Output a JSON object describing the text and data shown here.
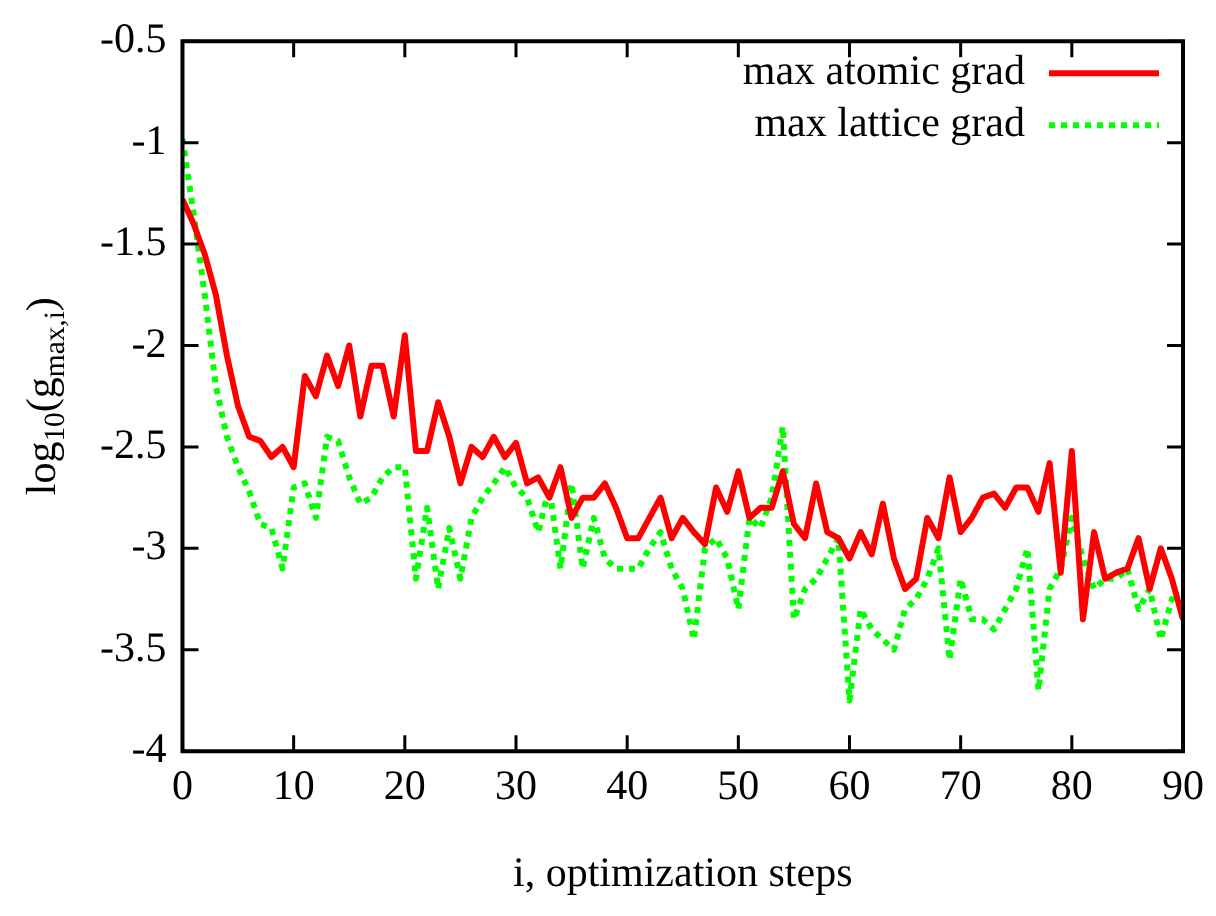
{
  "chart_data": {
    "type": "line",
    "xlabel": "i, optimization steps",
    "ylabel": "log$_{10}$(g$_{max,i}$)",
    "xlim": [
      0,
      90
    ],
    "xticks": [
      0,
      10,
      20,
      30,
      40,
      50,
      60,
      70,
      80,
      90
    ],
    "ylim": [
      -4,
      -0.5
    ],
    "yticks": [
      -4,
      -3.5,
      -3,
      -2.5,
      -2,
      -1.5,
      -1,
      -0.5
    ],
    "grid": false,
    "legend": "top right",
    "marker": "none",
    "x": [
      0,
      1,
      2,
      3,
      4,
      5,
      6,
      7,
      8,
      9,
      10,
      11,
      12,
      13,
      14,
      15,
      16,
      17,
      18,
      19,
      20,
      21,
      22,
      23,
      24,
      25,
      26,
      27,
      28,
      29,
      30,
      31,
      32,
      33,
      34,
      35,
      36,
      37,
      38,
      39,
      40,
      41,
      42,
      43,
      44,
      45,
      46,
      47,
      48,
      49,
      50,
      51,
      52,
      53,
      54,
      55,
      56,
      57,
      58,
      59,
      60,
      61,
      62,
      63,
      64,
      65,
      66,
      67,
      68,
      69,
      70,
      71,
      72,
      73,
      74,
      75,
      76,
      77,
      78,
      79,
      80,
      81,
      82,
      83,
      84,
      85,
      86,
      87,
      88,
      89,
      90
    ],
    "series": [
      {
        "name": "max atomic grad",
        "color": "#ff0000",
        "line_style": "solid",
        "values": [
          -1.28,
          -1.4,
          -1.55,
          -1.75,
          -2.05,
          -2.3,
          -2.45,
          -2.47,
          -2.55,
          -2.5,
          -2.6,
          -2.15,
          -2.25,
          -2.05,
          -2.2,
          -2.0,
          -2.35,
          -2.1,
          -2.1,
          -2.35,
          -1.95,
          -2.52,
          -2.52,
          -2.28,
          -2.45,
          -2.68,
          -2.5,
          -2.55,
          -2.45,
          -2.55,
          -2.48,
          -2.68,
          -2.65,
          -2.75,
          -2.6,
          -2.85,
          -2.75,
          -2.75,
          -2.68,
          -2.8,
          -2.95,
          -2.95,
          -2.85,
          -2.75,
          -2.95,
          -2.85,
          -2.92,
          -2.98,
          -2.7,
          -2.82,
          -2.62,
          -2.85,
          -2.8,
          -2.8,
          -2.62,
          -2.88,
          -2.95,
          -2.68,
          -2.92,
          -2.95,
          -3.05,
          -2.92,
          -3.03,
          -2.78,
          -3.05,
          -3.2,
          -3.15,
          -2.85,
          -2.95,
          -2.65,
          -2.92,
          -2.85,
          -2.75,
          -2.73,
          -2.8,
          -2.7,
          -2.7,
          -2.82,
          -2.58,
          -3.12,
          -2.52,
          -3.35,
          -2.92,
          -3.15,
          -3.12,
          -3.1,
          -2.95,
          -3.2,
          -3.0,
          -3.15,
          -3.35
        ]
      },
      {
        "name": "max lattice grad",
        "color": "#00ff00",
        "line_style": "dotted",
        "values": [
          -0.98,
          -1.35,
          -1.75,
          -2.2,
          -2.45,
          -2.6,
          -2.72,
          -2.88,
          -2.9,
          -3.1,
          -2.7,
          -2.68,
          -2.85,
          -2.45,
          -2.47,
          -2.65,
          -2.78,
          -2.75,
          -2.65,
          -2.6,
          -2.6,
          -3.15,
          -2.8,
          -3.2,
          -2.9,
          -3.15,
          -2.85,
          -2.75,
          -2.68,
          -2.6,
          -2.7,
          -2.75,
          -2.92,
          -2.7,
          -3.1,
          -2.68,
          -3.1,
          -2.85,
          -3.05,
          -3.1,
          -3.1,
          -3.1,
          -3.0,
          -2.92,
          -3.1,
          -3.2,
          -3.45,
          -3.0,
          -2.95,
          -3.05,
          -3.3,
          -2.85,
          -2.9,
          -2.75,
          -2.4,
          -3.35,
          -3.2,
          -3.15,
          -3.05,
          -2.95,
          -3.75,
          -3.3,
          -3.4,
          -3.45,
          -3.5,
          -3.3,
          -3.25,
          -3.15,
          -3.0,
          -3.55,
          -3.15,
          -3.35,
          -3.35,
          -3.4,
          -3.3,
          -3.2,
          -3.0,
          -3.7,
          -3.2,
          -3.1,
          -2.85,
          -3.05,
          -3.2,
          -3.15,
          -3.15,
          -3.1,
          -3.3,
          -3.2,
          -3.45,
          -3.25,
          -3.3
        ]
      }
    ]
  }
}
